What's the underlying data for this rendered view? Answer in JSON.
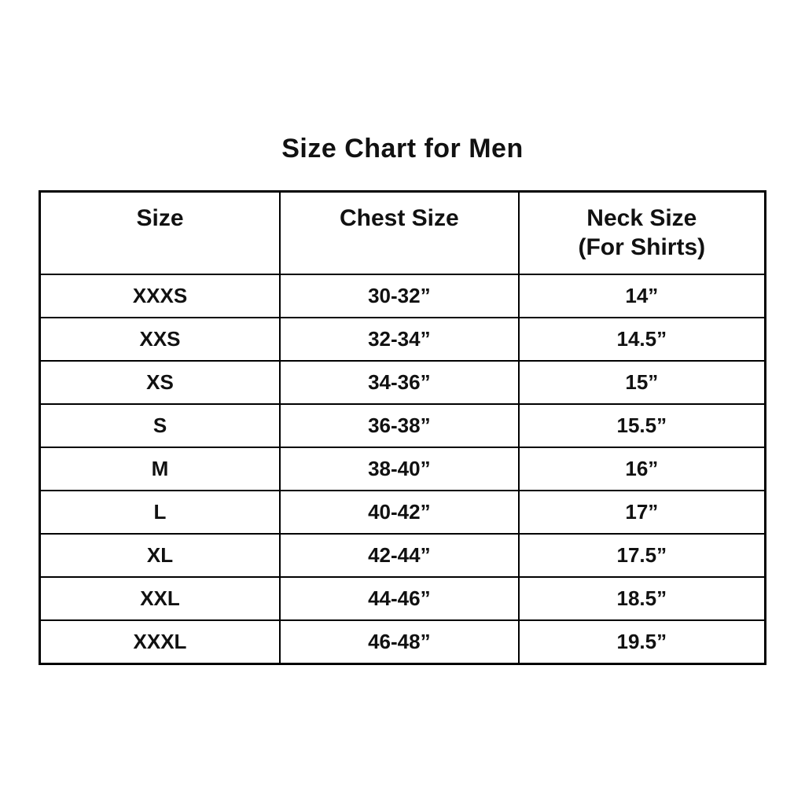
{
  "page": {
    "title": "Size Chart for Men"
  },
  "table": {
    "headers": [
      {
        "line1": "Size",
        "line2": ""
      },
      {
        "line1": "Chest Size",
        "line2": ""
      },
      {
        "line1": "Neck Size",
        "line2": "(For Shirts)"
      }
    ],
    "rows": [
      {
        "size": "XXXS",
        "chest": "30-32”",
        "neck": "14”"
      },
      {
        "size": "XXS",
        "chest": "32-34”",
        "neck": "14.5”"
      },
      {
        "size": "XS",
        "chest": "34-36”",
        "neck": "15”"
      },
      {
        "size": "S",
        "chest": "36-38”",
        "neck": "15.5”"
      },
      {
        "size": "M",
        "chest": "38-40”",
        "neck": "16”"
      },
      {
        "size": "L",
        "chest": "40-42”",
        "neck": "17”"
      },
      {
        "size": "XL",
        "chest": "42-44”",
        "neck": "17.5”"
      },
      {
        "size": "XXL",
        "chest": "44-46”",
        "neck": "18.5”"
      },
      {
        "size": "XXXL",
        "chest": "46-48”",
        "neck": "19.5”"
      }
    ]
  },
  "chart_data": {
    "type": "table",
    "title": "Size Chart for Men",
    "columns": [
      "Size",
      "Chest Size",
      "Neck Size (For Shirts)"
    ],
    "rows": [
      [
        "XXXS",
        "30-32”",
        "14”"
      ],
      [
        "XXS",
        "32-34”",
        "14.5”"
      ],
      [
        "XS",
        "34-36”",
        "15”"
      ],
      [
        "S",
        "36-38”",
        "15.5”"
      ],
      [
        "M",
        "38-40”",
        "16”"
      ],
      [
        "L",
        "40-42”",
        "17”"
      ],
      [
        "XL",
        "42-44”",
        "17.5”"
      ],
      [
        "XXL",
        "44-46”",
        "18.5”"
      ],
      [
        "XXXL",
        "46-48”",
        "19.5”"
      ]
    ]
  },
  "colors": {
    "text": "#111111",
    "border": "#000000",
    "background": "#ffffff"
  }
}
